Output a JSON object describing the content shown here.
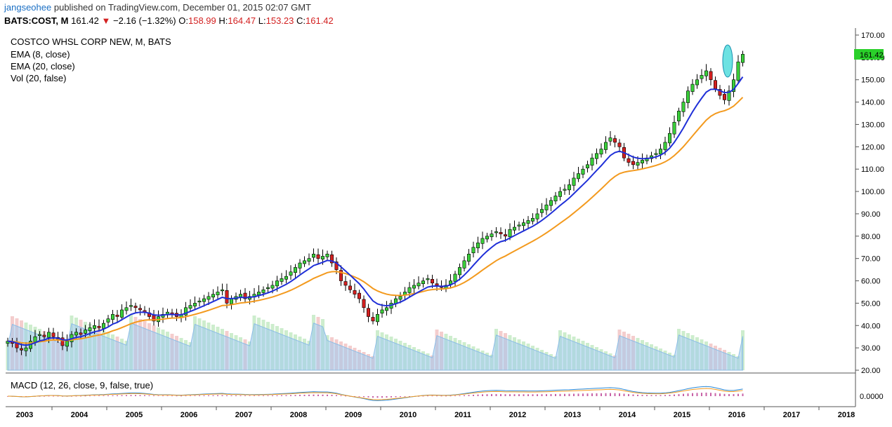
{
  "header": {
    "user": "jangseohee",
    "published_text": "published on TradingView.com, December 01, 2015 02:07 GMT",
    "symbol": "BATS:COST, M",
    "last": "161.42",
    "change": "−2.16 (−1.32%)",
    "o_label": "O:",
    "o_val": "158.99",
    "h_label": "H:",
    "h_val": "164.47",
    "l_label": "L:",
    "l_val": "153.23",
    "c_label": "C:",
    "c_val": "161.42"
  },
  "legend": {
    "title": "COSTCO WHSL CORP NEW, M, BATS",
    "ema8": "EMA (8, close)",
    "ema20": "EMA (20, close)",
    "vol": "Vol (20, false)",
    "macd": "MACD (12, 26, close, 9, false, true)"
  },
  "price_badge": "161.42",
  "macd_axis_label": "0.0000",
  "colors": {
    "up": "#3ad03a",
    "down": "#d42020",
    "ema_fast": "#1f2fd8",
    "ema_slow": "#f39a1e",
    "volume": "#8fcde6",
    "badge": "#2ad02a",
    "highlight": "#2fd6d6"
  },
  "chart_data": {
    "type": "candlestick",
    "y_ticks": [
      "170.00",
      "160.00",
      "150.00",
      "140.00",
      "130.00",
      "120.00",
      "110.00",
      "100.00",
      "90.00",
      "80.00",
      "70.00",
      "60.00",
      "50.00",
      "40.00",
      "30.00",
      "20.00"
    ],
    "x_ticks": [
      "2003",
      "2004",
      "2005",
      "2006",
      "2007",
      "2008",
      "2009",
      "2010",
      "2011",
      "2012",
      "2013",
      "2014",
      "2015",
      "2016",
      "2017",
      "2018"
    ],
    "ylim": [
      20,
      170
    ],
    "start_year": 2003,
    "close": [
      33,
      32,
      30,
      29,
      30,
      33,
      35,
      36,
      35,
      37,
      35,
      34,
      31,
      33,
      36,
      37,
      36,
      38,
      39,
      40,
      39,
      41,
      43,
      45,
      44,
      47,
      48,
      49,
      48,
      47,
      46,
      44,
      42,
      44,
      45,
      46,
      45,
      44,
      45,
      48,
      49,
      50,
      51,
      52,
      53,
      54,
      55,
      56,
      50,
      52,
      53,
      54,
      52,
      53,
      54,
      55,
      56,
      57,
      58,
      60,
      61,
      62,
      64,
      66,
      68,
      69,
      70,
      72,
      70,
      71,
      72,
      68,
      65,
      60,
      58,
      56,
      54,
      52,
      48,
      44,
      42,
      45,
      47,
      48,
      50,
      52,
      53,
      55,
      57,
      58,
      59,
      60,
      61,
      59,
      58,
      57,
      58,
      60,
      63,
      66,
      69,
      72,
      75,
      77,
      79,
      80,
      81,
      82,
      81,
      80,
      83,
      84,
      85,
      86,
      87,
      88,
      90,
      92,
      94,
      96,
      98,
      100,
      101,
      103,
      106,
      108,
      110,
      112,
      115,
      117,
      119,
      122,
      124,
      122,
      120,
      115,
      113,
      112,
      113,
      114,
      115,
      116,
      117,
      119,
      122,
      126,
      131,
      136,
      140,
      145,
      148,
      150,
      152,
      154,
      150,
      146,
      143,
      141,
      145,
      150,
      158,
      161.42
    ],
    "ema8_label": "EMA (8, close)",
    "ema20_label": "EMA (20, close)"
  }
}
